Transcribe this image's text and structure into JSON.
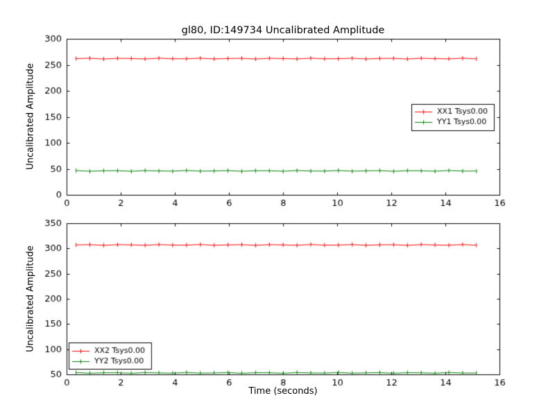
{
  "colors": {
    "background": "#ffffff",
    "axes": "#000000",
    "red_series": "#ff0000",
    "green_series": "#008000"
  },
  "chart_data": [
    {
      "type": "line",
      "title": "gl80, ID:149734 Uncalibrated Amplitude",
      "ylabel": "Uncalibrated Amplitude",
      "xlabel": "",
      "xlim": [
        0,
        16
      ],
      "ylim": [
        0,
        300
      ],
      "xticks": [
        0,
        2,
        4,
        6,
        8,
        10,
        12,
        14,
        16
      ],
      "yticks": [
        0,
        50,
        100,
        150,
        200,
        250,
        300
      ],
      "x_start": 0.35,
      "x_end": 15.15,
      "n_points": 30,
      "grid": false,
      "legend_position": "center-right",
      "series": [
        {
          "name": "XX1 Tsys0.00",
          "color": "#ff0000",
          "value": 262
        },
        {
          "name": "YY1 Tsys0.00",
          "color": "#008000",
          "value": 46
        }
      ]
    },
    {
      "type": "line",
      "title": "",
      "ylabel": "Uncalibrated Amplitude",
      "xlabel": "Time (seconds)",
      "xlim": [
        0,
        16
      ],
      "ylim": [
        50,
        350
      ],
      "xticks": [
        0,
        2,
        4,
        6,
        8,
        10,
        12,
        14,
        16
      ],
      "yticks": [
        50,
        100,
        150,
        200,
        250,
        300,
        350
      ],
      "x_start": 0.35,
      "x_end": 15.15,
      "n_points": 30,
      "grid": false,
      "legend_position": "lower-left",
      "series": [
        {
          "name": "XX2 Tsys0.00",
          "color": "#ff0000",
          "value": 307
        },
        {
          "name": "YY2 Tsys0.00",
          "color": "#008000",
          "value": 53
        }
      ]
    }
  ]
}
